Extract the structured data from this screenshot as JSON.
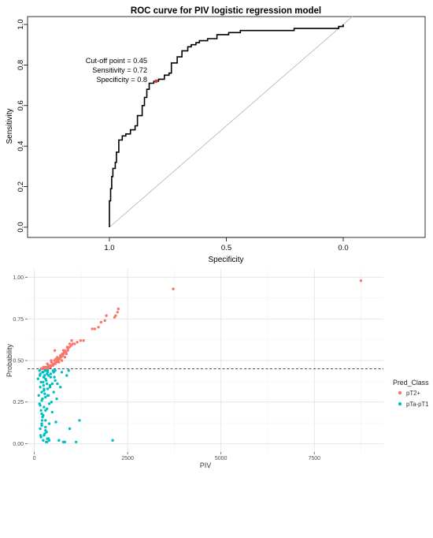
{
  "chart_data": [
    {
      "type": "line",
      "title": "ROC curve for PIV logistic regression model",
      "xlabel": "Specificity",
      "ylabel": "Sensitivity",
      "xlim": [
        1.35,
        -0.35
      ],
      "ylim": [
        0,
        1
      ],
      "x_reversed": true,
      "x_ticks": [
        1.0,
        0.5,
        0.0
      ],
      "x_tick_labels": [
        "1.0",
        "0.5",
        "0.0"
      ],
      "y_ticks": [
        0.0,
        0.2,
        0.4,
        0.6,
        0.8,
        1.0
      ],
      "y_tick_labels": [
        "0.0",
        "0.2",
        "0.4",
        "0.6",
        "0.8",
        "1.0"
      ],
      "grid": false,
      "diagonal_reference": true,
      "annotation": {
        "lines": [
          "Cut-off point = 0.45",
          "Sensitivity = 0.72",
          "Specificity = 0.8"
        ],
        "point": {
          "specificity": 0.8,
          "sensitivity": 0.72
        },
        "point_color": "#cc3b2b"
      },
      "series": [
        {
          "specificity": [
            1.0,
            1.0,
            0.995,
            0.995,
            0.99,
            0.99,
            0.985,
            0.985,
            0.975,
            0.975,
            0.97,
            0.97,
            0.96,
            0.96,
            0.945,
            0.945,
            0.93,
            0.93,
            0.91,
            0.91,
            0.89,
            0.89,
            0.88,
            0.88,
            0.86,
            0.86,
            0.85,
            0.85,
            0.84,
            0.84,
            0.83,
            0.83,
            0.81,
            0.81,
            0.79,
            0.79,
            0.765,
            0.765,
            0.745,
            0.745,
            0.735,
            0.735,
            0.71,
            0.71,
            0.69,
            0.69,
            0.665,
            0.665,
            0.65,
            0.65,
            0.63,
            0.63,
            0.615,
            0.615,
            0.58,
            0.58,
            0.54,
            0.54,
            0.49,
            0.49,
            0.44,
            0.44,
            0.37,
            0.37,
            0.3,
            0.3,
            0.21,
            0.21,
            0.02,
            0.02,
            0.0,
            0.0
          ],
          "sensitivity": [
            0.0,
            0.13,
            0.13,
            0.19,
            0.19,
            0.25,
            0.25,
            0.29,
            0.29,
            0.32,
            0.32,
            0.37,
            0.37,
            0.43,
            0.43,
            0.45,
            0.45,
            0.46,
            0.46,
            0.48,
            0.48,
            0.5,
            0.5,
            0.55,
            0.55,
            0.6,
            0.6,
            0.64,
            0.64,
            0.68,
            0.68,
            0.71,
            0.71,
            0.72,
            0.72,
            0.73,
            0.73,
            0.75,
            0.75,
            0.76,
            0.76,
            0.81,
            0.81,
            0.84,
            0.84,
            0.87,
            0.87,
            0.89,
            0.89,
            0.9,
            0.9,
            0.91,
            0.91,
            0.92,
            0.92,
            0.93,
            0.93,
            0.95,
            0.95,
            0.96,
            0.96,
            0.97,
            0.97,
            0.97,
            0.97,
            0.97,
            0.97,
            0.98,
            0.98,
            0.99,
            0.99,
            1.0
          ]
        }
      ]
    },
    {
      "type": "scatter",
      "xlabel": "PIV",
      "ylabel": "Probability",
      "xlim": [
        -180,
        9350
      ],
      "ylim": [
        -0.05,
        1.05
      ],
      "x_ticks": [
        0,
        2500,
        5000,
        7500
      ],
      "x_tick_labels": [
        "0",
        "2500",
        "5000",
        "7500"
      ],
      "y_ticks": [
        0.0,
        0.25,
        0.5,
        0.75,
        1.0
      ],
      "y_tick_labels": [
        "0.00",
        "0.25",
        "0.50",
        "0.75",
        "1.00"
      ],
      "grid": true,
      "threshold_line": 0.45,
      "legend": {
        "title": "Pred_Class",
        "placement": "right",
        "entries": [
          {
            "label": "pT2+",
            "color": "#f8766d"
          },
          {
            "label": "pTa-pT1",
            "color": "#00bfc4"
          }
        ]
      },
      "series": [
        {
          "name": "pT2+",
          "color": "#f8766d",
          "x": [
            8750,
            3720,
            2250,
            2230,
            2180,
            2150,
            1930,
            1890,
            1790,
            1720,
            1620,
            1550,
            1320,
            1240,
            1150,
            1080,
            1030,
            990,
            940,
            900,
            880,
            840,
            820,
            800,
            780,
            760,
            740,
            720,
            700,
            680,
            660,
            640,
            620,
            600,
            580,
            560,
            540,
            520,
            500,
            480,
            460,
            440,
            420,
            400,
            380,
            360,
            340,
            320,
            300,
            280,
            900,
            860,
            820,
            780,
            740,
            700,
            660,
            620,
            580,
            540,
            500,
            460,
            420,
            380,
            340,
            300,
            260,
            240,
            220,
            200,
            180,
            1000,
            950,
            850,
            750,
            650,
            550,
            450,
            350,
            250
          ],
          "y": [
            0.98,
            0.93,
            0.81,
            0.79,
            0.77,
            0.76,
            0.77,
            0.74,
            0.73,
            0.7,
            0.69,
            0.69,
            0.62,
            0.62,
            0.61,
            0.6,
            0.6,
            0.59,
            0.58,
            0.56,
            0.58,
            0.55,
            0.56,
            0.55,
            0.54,
            0.53,
            0.53,
            0.52,
            0.52,
            0.51,
            0.51,
            0.5,
            0.5,
            0.49,
            0.49,
            0.48,
            0.48,
            0.48,
            0.47,
            0.47,
            0.47,
            0.46,
            0.46,
            0.46,
            0.46,
            0.45,
            0.45,
            0.45,
            0.45,
            0.45,
            0.57,
            0.54,
            0.52,
            0.56,
            0.5,
            0.53,
            0.49,
            0.52,
            0.51,
            0.5,
            0.48,
            0.49,
            0.47,
            0.47,
            0.46,
            0.46,
            0.46,
            0.45,
            0.45,
            0.45,
            0.45,
            0.62,
            0.6,
            0.55,
            0.54,
            0.51,
            0.56,
            0.5,
            0.48,
            0.46
          ]
        },
        {
          "name": "pTa-pT1",
          "color": "#00bfc4",
          "x": [
            2100,
            1210,
            1120,
            950,
            920,
            870,
            820,
            780,
            740,
            700,
            660,
            620,
            600,
            580,
            560,
            540,
            520,
            500,
            480,
            460,
            440,
            420,
            400,
            380,
            360,
            340,
            320,
            300,
            280,
            260,
            240,
            220,
            200,
            180,
            160,
            140,
            120,
            100,
            560,
            520,
            480,
            440,
            400,
            360,
            320,
            280,
            240,
            200,
            160,
            140,
            380,
            340,
            300,
            260,
            220,
            180,
            420,
            360,
            300,
            240,
            200,
            160,
            380,
            340,
            300,
            260,
            220,
            180,
            330,
            290,
            250,
            210,
            170,
            360,
            320,
            280,
            240,
            200,
            160,
            400,
            350,
            300,
            250,
            200,
            150,
            260,
            300,
            340
          ],
          "y": [
            0.02,
            0.14,
            0.01,
            0.09,
            0.44,
            0.41,
            0.01,
            0.01,
            0.43,
            0.34,
            0.02,
            0.36,
            0.27,
            0.13,
            0.44,
            0.4,
            0.31,
            0.44,
            0.36,
            0.25,
            0.42,
            0.34,
            0.02,
            0.29,
            0.44,
            0.21,
            0.38,
            0.14,
            0.41,
            0.32,
            0.02,
            0.43,
            0.26,
            0.37,
            0.09,
            0.44,
            0.29,
            0.39,
            0.38,
            0.43,
            0.19,
            0.4,
            0.12,
            0.33,
            0.44,
            0.06,
            0.37,
            0.18,
            0.42,
            0.24,
            0.41,
            0.36,
            0.28,
            0.22,
            0.16,
            0.04,
            0.35,
            0.29,
            0.1,
            0.43,
            0.31,
            0.23,
            0.03,
            0.42,
            0.39,
            0.33,
            0.27,
            0.2,
            0.07,
            0.44,
            0.35,
            0.14,
            0.05,
            0.43,
            0.01,
            0.3,
            0.17,
            0.11,
            0.34,
            0.24,
            0.03,
            0.2,
            0.4,
            0.12,
            0.41,
            0.05,
            0.08,
            0.01
          ]
        }
      ]
    }
  ]
}
